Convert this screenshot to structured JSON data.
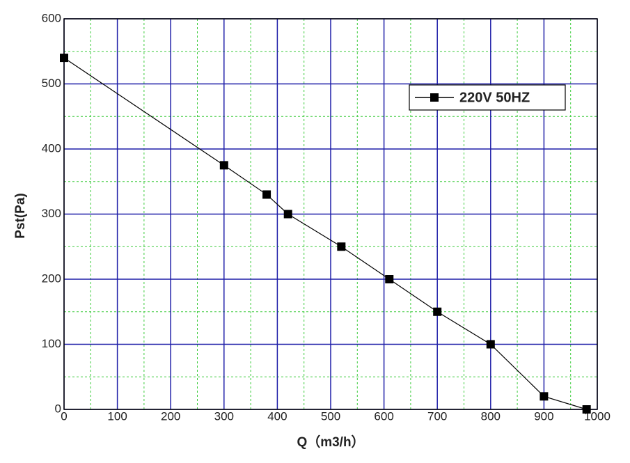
{
  "chart_data": {
    "type": "line",
    "x_label": "Q（m3/h）",
    "y_label": "Pst(Pa)",
    "x": [
      0,
      300,
      380,
      420,
      520,
      610,
      700,
      800,
      900,
      980
    ],
    "series": [
      {
        "name": "220V 50HZ",
        "color": "#000000",
        "values": [
          540,
          375,
          330,
          300,
          250,
          200,
          150,
          100,
          20,
          0
        ]
      }
    ],
    "xlim": [
      0,
      1000
    ],
    "xticks": [
      0,
      100,
      200,
      300,
      400,
      500,
      600,
      700,
      800,
      900,
      1000
    ],
    "ylim": [
      0,
      600
    ],
    "yticks": [
      0,
      100,
      200,
      300,
      400,
      500,
      600
    ],
    "grid": true,
    "grid_color": "#1f1fa8",
    "minor_grid": true,
    "minor_grid_color": "#3ccc3c",
    "legend": "upper right"
  }
}
